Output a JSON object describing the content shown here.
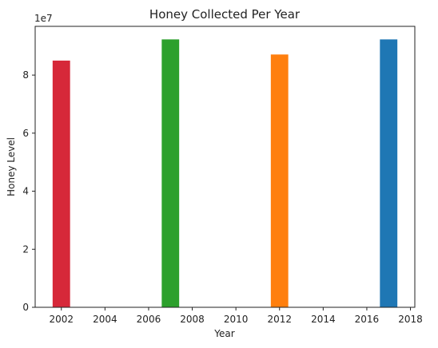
{
  "chart_data": {
    "type": "bar",
    "title": "Honey Collected Per Year",
    "xlabel": "Year",
    "ylabel": "Honey Level",
    "y_offset_label": "1e7",
    "categories": [
      2002,
      2007,
      2012,
      2017
    ],
    "values": [
      85000000,
      92300000,
      87100000,
      92300000
    ],
    "bar_colors": [
      "#d62839",
      "#2ca02c",
      "#ff7f0e",
      "#1f77b4"
    ],
    "xlim": [
      2000.8,
      2018.2
    ],
    "ylim": [
      0,
      96800000
    ],
    "x_ticks": [
      2002,
      2004,
      2006,
      2008,
      2010,
      2012,
      2014,
      2016,
      2018
    ],
    "x_tick_labels": [
      "2002",
      "2004",
      "2006",
      "2008",
      "2010",
      "2012",
      "2014",
      "2016",
      "2018"
    ],
    "y_ticks": [
      0,
      20000000,
      40000000,
      60000000,
      80000000
    ],
    "y_tick_labels": [
      "0",
      "2",
      "4",
      "6",
      "8"
    ],
    "bar_width_years": 0.8,
    "grid": false,
    "legend": false
  }
}
